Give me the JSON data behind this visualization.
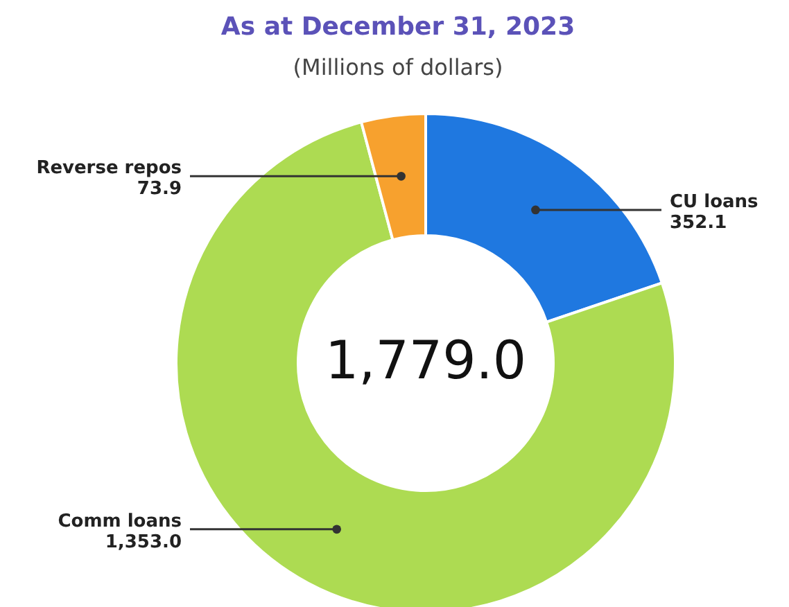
{
  "chart_data": {
    "type": "donut",
    "title": "As at December 31, 2023",
    "subtitle": "(Millions of dollars)",
    "categories": [
      "CU loans",
      "Comm loans",
      "Reverse repos"
    ],
    "values": [
      352.1,
      1353.0,
      73.9
    ],
    "colors": [
      "#1f78e0",
      "#addb52",
      "#f7a12e"
    ],
    "value_labels": [
      "352.1",
      "1,353.0",
      "73.9"
    ],
    "annotations": [
      "1,779.0"
    ]
  }
}
